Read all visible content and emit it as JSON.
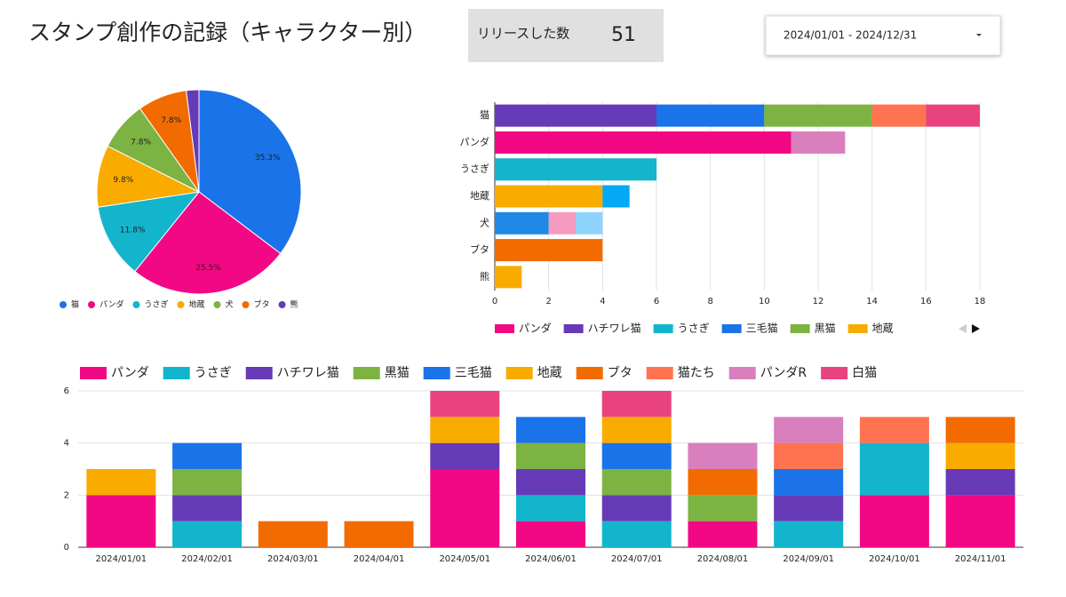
{
  "header": {
    "title": "スタンプ創作の記録（キャラクター別）",
    "scorecard_label": "リリースした数",
    "scorecard_value": 51,
    "date_range": "2024/01/01 - 2024/12/31"
  },
  "chart_data": [
    {
      "type": "pie",
      "categories": [
        "猫",
        "パンダ",
        "うさぎ",
        "地蔵",
        "犬",
        "ブタ",
        "熊"
      ],
      "values": [
        35.3,
        25.5,
        11.8,
        9.8,
        7.8,
        7.8,
        2.0
      ],
      "value_labels": [
        "35.3%",
        "25.5%",
        "11.8%",
        "9.8%",
        "7.8%",
        "7.8%",
        null
      ],
      "colors": [
        "#1a73e8",
        "#f20884",
        "#12b5cb",
        "#f9ab00",
        "#7cb342",
        "#f26b00",
        "#673ab7"
      ],
      "legend": "bottom"
    },
    {
      "type": "bar",
      "orientation": "horizontal",
      "stacked": true,
      "categories": [
        "猫",
        "パンダ",
        "うさぎ",
        "地蔵",
        "犬",
        "ブタ",
        "熊"
      ],
      "series": [
        {
          "name": "パンダ",
          "color": "#f20884",
          "values": [
            null,
            11,
            null,
            null,
            null,
            null,
            null
          ]
        },
        {
          "name": "ハチワレ猫",
          "color": "#673ab7",
          "values": [
            6,
            null,
            null,
            null,
            null,
            null,
            null
          ]
        },
        {
          "name": "うさぎ",
          "color": "#12b5cb",
          "values": [
            null,
            null,
            6,
            null,
            null,
            null,
            null
          ]
        },
        {
          "name": "三毛猫",
          "color": "#1a73e8",
          "values": [
            4,
            null,
            null,
            null,
            null,
            null,
            null
          ]
        },
        {
          "name": "黒猫",
          "color": "#7cb342",
          "values": [
            4,
            null,
            null,
            null,
            null,
            null,
            null
          ]
        },
        {
          "name": "地蔵",
          "color": "#f9ab00",
          "values": [
            null,
            null,
            null,
            4,
            null,
            null,
            null
          ]
        },
        {
          "name": null,
          "color": "#ff7350",
          "values": [
            2,
            null,
            null,
            null,
            null,
            null,
            null
          ]
        },
        {
          "name": null,
          "color": "#e8437e",
          "values": [
            2,
            null,
            null,
            null,
            null,
            null,
            null
          ]
        },
        {
          "name": null,
          "color": "#d97fbe",
          "values": [
            null,
            2,
            null,
            null,
            null,
            null,
            null
          ]
        },
        {
          "name": null,
          "color": "#03a9f4",
          "values": [
            null,
            null,
            null,
            1,
            null,
            null,
            null
          ]
        },
        {
          "name": null,
          "color": "#1e88e5",
          "values": [
            null,
            null,
            null,
            null,
            2,
            null,
            null
          ]
        },
        {
          "name": null,
          "color": "#f59ac0",
          "values": [
            null,
            null,
            null,
            null,
            1,
            null,
            null
          ]
        },
        {
          "name": null,
          "color": "#8dd3fb",
          "values": [
            null,
            null,
            null,
            null,
            1,
            null,
            null
          ]
        },
        {
          "name": null,
          "color": "#f26b00",
          "values": [
            null,
            null,
            null,
            null,
            null,
            4,
            null
          ]
        },
        {
          "name": null,
          "color": "#f9ab00",
          "values": [
            null,
            null,
            null,
            null,
            null,
            null,
            1
          ]
        }
      ],
      "xlim": [
        0,
        18
      ],
      "xticks": [
        0,
        2,
        4,
        6,
        8,
        10,
        12,
        14,
        16,
        18
      ],
      "grid": true,
      "legend": "bottom"
    },
    {
      "type": "bar",
      "orientation": "vertical",
      "stacked": true,
      "categories": [
        "2024/01/01",
        "2024/02/01",
        "2024/03/01",
        "2024/04/01",
        "2024/05/01",
        "2024/06/01",
        "2024/07/01",
        "2024/08/01",
        "2024/09/01",
        "2024/10/01",
        "2024/11/01"
      ],
      "series": [
        {
          "name": "パンダ",
          "color": "#f20884",
          "values": [
            2,
            0,
            0,
            0,
            3,
            1,
            0,
            1,
            0,
            2,
            2
          ]
        },
        {
          "name": "うさぎ",
          "color": "#12b5cb",
          "values": [
            0,
            1,
            0,
            0,
            0,
            1,
            1,
            0,
            1,
            2,
            0
          ]
        },
        {
          "name": "ハチワレ猫",
          "color": "#673ab7",
          "values": [
            0,
            1,
            0,
            0,
            1,
            1,
            1,
            0,
            1,
            0,
            1
          ]
        },
        {
          "name": "黒猫",
          "color": "#7cb342",
          "values": [
            0,
            1,
            0,
            0,
            0,
            1,
            1,
            1,
            0,
            0,
            0
          ]
        },
        {
          "name": "三毛猫",
          "color": "#1a73e8",
          "values": [
            0,
            1,
            0,
            0,
            0,
            1,
            1,
            0,
            1,
            0,
            0
          ]
        },
        {
          "name": "地蔵",
          "color": "#f9ab00",
          "values": [
            1,
            0,
            0,
            0,
            1,
            0,
            1,
            0,
            0,
            0,
            1
          ]
        },
        {
          "name": "ブタ",
          "color": "#f26b00",
          "values": [
            0,
            0,
            1,
            1,
            0,
            0,
            0,
            1,
            0,
            0,
            1
          ]
        },
        {
          "name": "猫たち",
          "color": "#ff7350",
          "values": [
            0,
            0,
            0,
            0,
            0,
            0,
            0,
            0,
            1,
            1,
            0
          ]
        },
        {
          "name": "パンダR",
          "color": "#d97fbe",
          "values": [
            0,
            0,
            0,
            0,
            0,
            0,
            0,
            1,
            1,
            0,
            0
          ]
        },
        {
          "name": "白猫",
          "color": "#e8437e",
          "values": [
            0,
            0,
            0,
            0,
            1,
            0,
            1,
            0,
            0,
            0,
            0
          ]
        }
      ],
      "ylim": [
        0,
        6
      ],
      "yticks": [
        0,
        2,
        4,
        6
      ],
      "grid": true,
      "legend": "top"
    }
  ]
}
